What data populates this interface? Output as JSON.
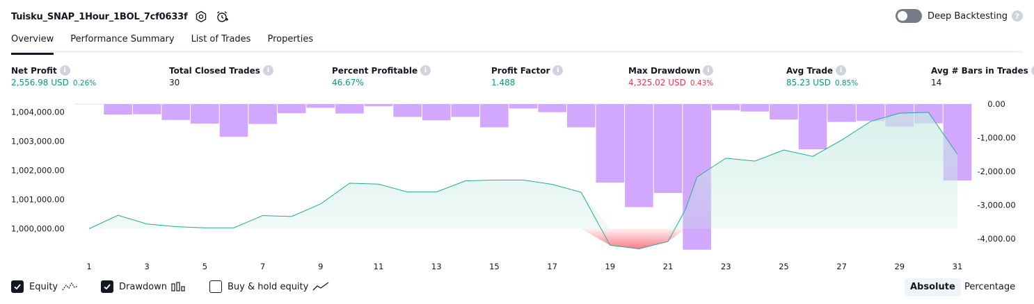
{
  "header": {
    "title": "Tuisku_SNAP_1Hour_1BOL_7cf0633f",
    "deep_backtesting_label": "Deep Backtesting"
  },
  "tabs": [
    {
      "label": "Overview",
      "active": true
    },
    {
      "label": "Performance Summary",
      "active": false
    },
    {
      "label": "List of Trades",
      "active": false
    },
    {
      "label": "Properties",
      "active": false
    }
  ],
  "metrics": {
    "net_profit": {
      "label": "Net Profit",
      "value": "2,556.98 USD",
      "pct": "0.26%"
    },
    "total_closed_trades": {
      "label": "Total Closed Trades",
      "value": "30"
    },
    "percent_profitable": {
      "label": "Percent Profitable",
      "value": "46.67%"
    },
    "profit_factor": {
      "label": "Profit Factor",
      "value": "1.488"
    },
    "max_drawdown": {
      "label": "Max Drawdown",
      "value": "4,325.02 USD",
      "pct": "0.43%"
    },
    "avg_trade": {
      "label": "Avg Trade",
      "value": "85.23 USD",
      "pct": "0.85%"
    },
    "avg_bars": {
      "label": "Avg # Bars in Trades",
      "value": "14"
    }
  },
  "chart_data": {
    "type": "area",
    "equity_axis": {
      "ticks": [
        "1,000,000.00",
        "1,001,000.00",
        "1,002,000.00",
        "1,003,000.00",
        "1,004,000.00"
      ],
      "range": [
        999500,
        1004500
      ]
    },
    "drawdown_axis": {
      "ticks": [
        "0.00",
        "-1,000.00",
        "-2,000.00",
        "-3,000.00",
        "-4,000.00"
      ],
      "range": [
        0,
        -4500
      ]
    },
    "x_ticks": [
      "1",
      "3",
      "5",
      "7",
      "9",
      "11",
      "13",
      "15",
      "17",
      "19",
      "21",
      "23",
      "25",
      "27",
      "29",
      "31"
    ],
    "baseline": 1000000,
    "equity": [
      {
        "x": 1,
        "y": 1000000
      },
      {
        "x": 2,
        "y": 1000460
      },
      {
        "x": 3,
        "y": 1000160
      },
      {
        "x": 4,
        "y": 1000070
      },
      {
        "x": 5,
        "y": 1000030
      },
      {
        "x": 6,
        "y": 1000030
      },
      {
        "x": 7,
        "y": 1000450
      },
      {
        "x": 8,
        "y": 1000420
      },
      {
        "x": 9,
        "y": 1000850
      },
      {
        "x": 10,
        "y": 1001560
      },
      {
        "x": 11,
        "y": 1001530
      },
      {
        "x": 12,
        "y": 1001260
      },
      {
        "x": 13,
        "y": 1001260
      },
      {
        "x": 14,
        "y": 1001640
      },
      {
        "x": 15,
        "y": 1001670
      },
      {
        "x": 16,
        "y": 1001670
      },
      {
        "x": 17,
        "y": 1001520
      },
      {
        "x": 18,
        "y": 1001250
      },
      {
        "x": 19,
        "y": 999430
      },
      {
        "x": 20,
        "y": 999310
      },
      {
        "x": 21,
        "y": 999560
      },
      {
        "x": 21.6,
        "y": 1000650
      },
      {
        "x": 22,
        "y": 1001770
      },
      {
        "x": 23,
        "y": 1002420
      },
      {
        "x": 24,
        "y": 1002320
      },
      {
        "x": 25,
        "y": 1002700
      },
      {
        "x": 26,
        "y": 1002480
      },
      {
        "x": 27,
        "y": 1003040
      },
      {
        "x": 28,
        "y": 1003680
      },
      {
        "x": 29,
        "y": 1003960
      },
      {
        "x": 30,
        "y": 1003990
      },
      {
        "x": 31,
        "y": 1002550
      }
    ],
    "drawdown_bars": [
      {
        "x": 2,
        "y": -310
      },
      {
        "x": 3,
        "y": -300
      },
      {
        "x": 4,
        "y": -470
      },
      {
        "x": 5,
        "y": -580
      },
      {
        "x": 6,
        "y": -970
      },
      {
        "x": 7,
        "y": -590
      },
      {
        "x": 8,
        "y": -270
      },
      {
        "x": 9,
        "y": -110
      },
      {
        "x": 10,
        "y": -280
      },
      {
        "x": 11,
        "y": -60
      },
      {
        "x": 12,
        "y": -380
      },
      {
        "x": 13,
        "y": -480
      },
      {
        "x": 14,
        "y": -380
      },
      {
        "x": 15,
        "y": -690
      },
      {
        "x": 16,
        "y": -130
      },
      {
        "x": 17,
        "y": -240
      },
      {
        "x": 18,
        "y": -690
      },
      {
        "x": 19,
        "y": -2330
      },
      {
        "x": 20,
        "y": -3060
      },
      {
        "x": 21,
        "y": -2640
      },
      {
        "x": 22,
        "y": -4325
      },
      {
        "x": 23,
        "y": -180
      },
      {
        "x": 24,
        "y": -220
      },
      {
        "x": 25,
        "y": -460
      },
      {
        "x": 26,
        "y": -1340
      },
      {
        "x": 27,
        "y": -530
      },
      {
        "x": 28,
        "y": -500
      },
      {
        "x": 29,
        "y": -670
      },
      {
        "x": 30,
        "y": -570
      },
      {
        "x": 31,
        "y": -2270
      }
    ],
    "colors": {
      "equity_line": "#22ab94",
      "equity_fill": "#c8ebe3",
      "loss_fill": "#f7525f",
      "drawdown_bar": "#d1a8fd",
      "grid": "#e0e3eb"
    }
  },
  "legend": {
    "equity": {
      "label": "Equity",
      "checked": true
    },
    "drawdown": {
      "label": "Drawdown",
      "checked": true
    },
    "buy_hold": {
      "label": "Buy & hold equity",
      "checked": false
    }
  },
  "modes": {
    "absolute": "Absolute",
    "percentage": "Percentage",
    "selected": "absolute"
  }
}
